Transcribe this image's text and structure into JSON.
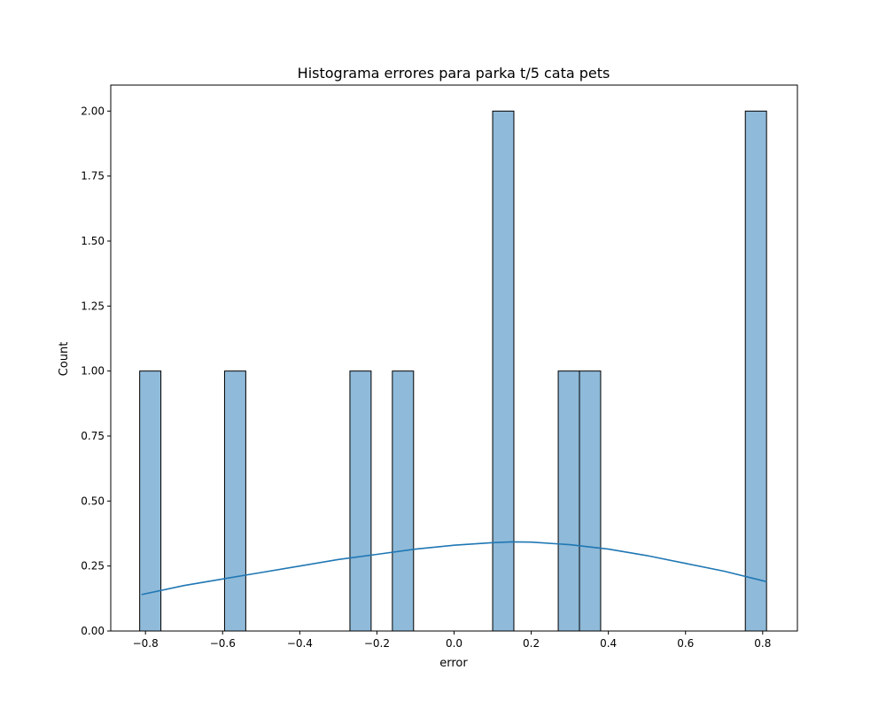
{
  "chart_data": {
    "type": "histogram",
    "title": "Histograma errores para parka t/5 cata pets",
    "xlabel": "error",
    "ylabel": "Count",
    "xlim": [
      -0.89,
      0.89
    ],
    "ylim": [
      0,
      2.1
    ],
    "xticks": [
      -0.8,
      -0.6,
      -0.4,
      -0.2,
      0.0,
      0.2,
      0.4,
      0.6,
      0.8
    ],
    "xtick_labels": [
      "−0.8",
      "−0.6",
      "−0.4",
      "−0.2",
      "0.0",
      "0.2",
      "0.4",
      "0.6",
      "0.8"
    ],
    "yticks": [
      0,
      0.25,
      0.5,
      0.75,
      1.0,
      1.25,
      1.5,
      1.75,
      2.0
    ],
    "ytick_labels": [
      "0.00",
      "0.25",
      "0.50",
      "0.75",
      "1.00",
      "1.25",
      "1.50",
      "1.75",
      "2.00"
    ],
    "bars": [
      {
        "x0": -0.815,
        "x1": -0.76,
        "count": 1
      },
      {
        "x0": -0.595,
        "x1": -0.54,
        "count": 1
      },
      {
        "x0": -0.27,
        "x1": -0.215,
        "count": 1
      },
      {
        "x0": -0.16,
        "x1": -0.105,
        "count": 1
      },
      {
        "x0": 0.1,
        "x1": 0.155,
        "count": 2
      },
      {
        "x0": 0.27,
        "x1": 0.325,
        "count": 1
      },
      {
        "x0": 0.325,
        "x1": 0.38,
        "count": 1
      },
      {
        "x0": 0.755,
        "x1": 0.81,
        "count": 2
      }
    ],
    "kde": {
      "x": [
        -0.81,
        -0.7,
        -0.6,
        -0.5,
        -0.4,
        -0.3,
        -0.2,
        -0.1,
        0.0,
        0.1,
        0.15,
        0.2,
        0.3,
        0.4,
        0.5,
        0.6,
        0.7,
        0.81
      ],
      "y": [
        0.14,
        0.175,
        0.2,
        0.225,
        0.25,
        0.275,
        0.295,
        0.315,
        0.33,
        0.34,
        0.343,
        0.342,
        0.332,
        0.315,
        0.29,
        0.26,
        0.23,
        0.19
      ]
    },
    "bar_fill": "#8fbad9",
    "bar_edge": "#000000",
    "kde_color": "#1f77b4",
    "grid": false,
    "legend": "none"
  }
}
